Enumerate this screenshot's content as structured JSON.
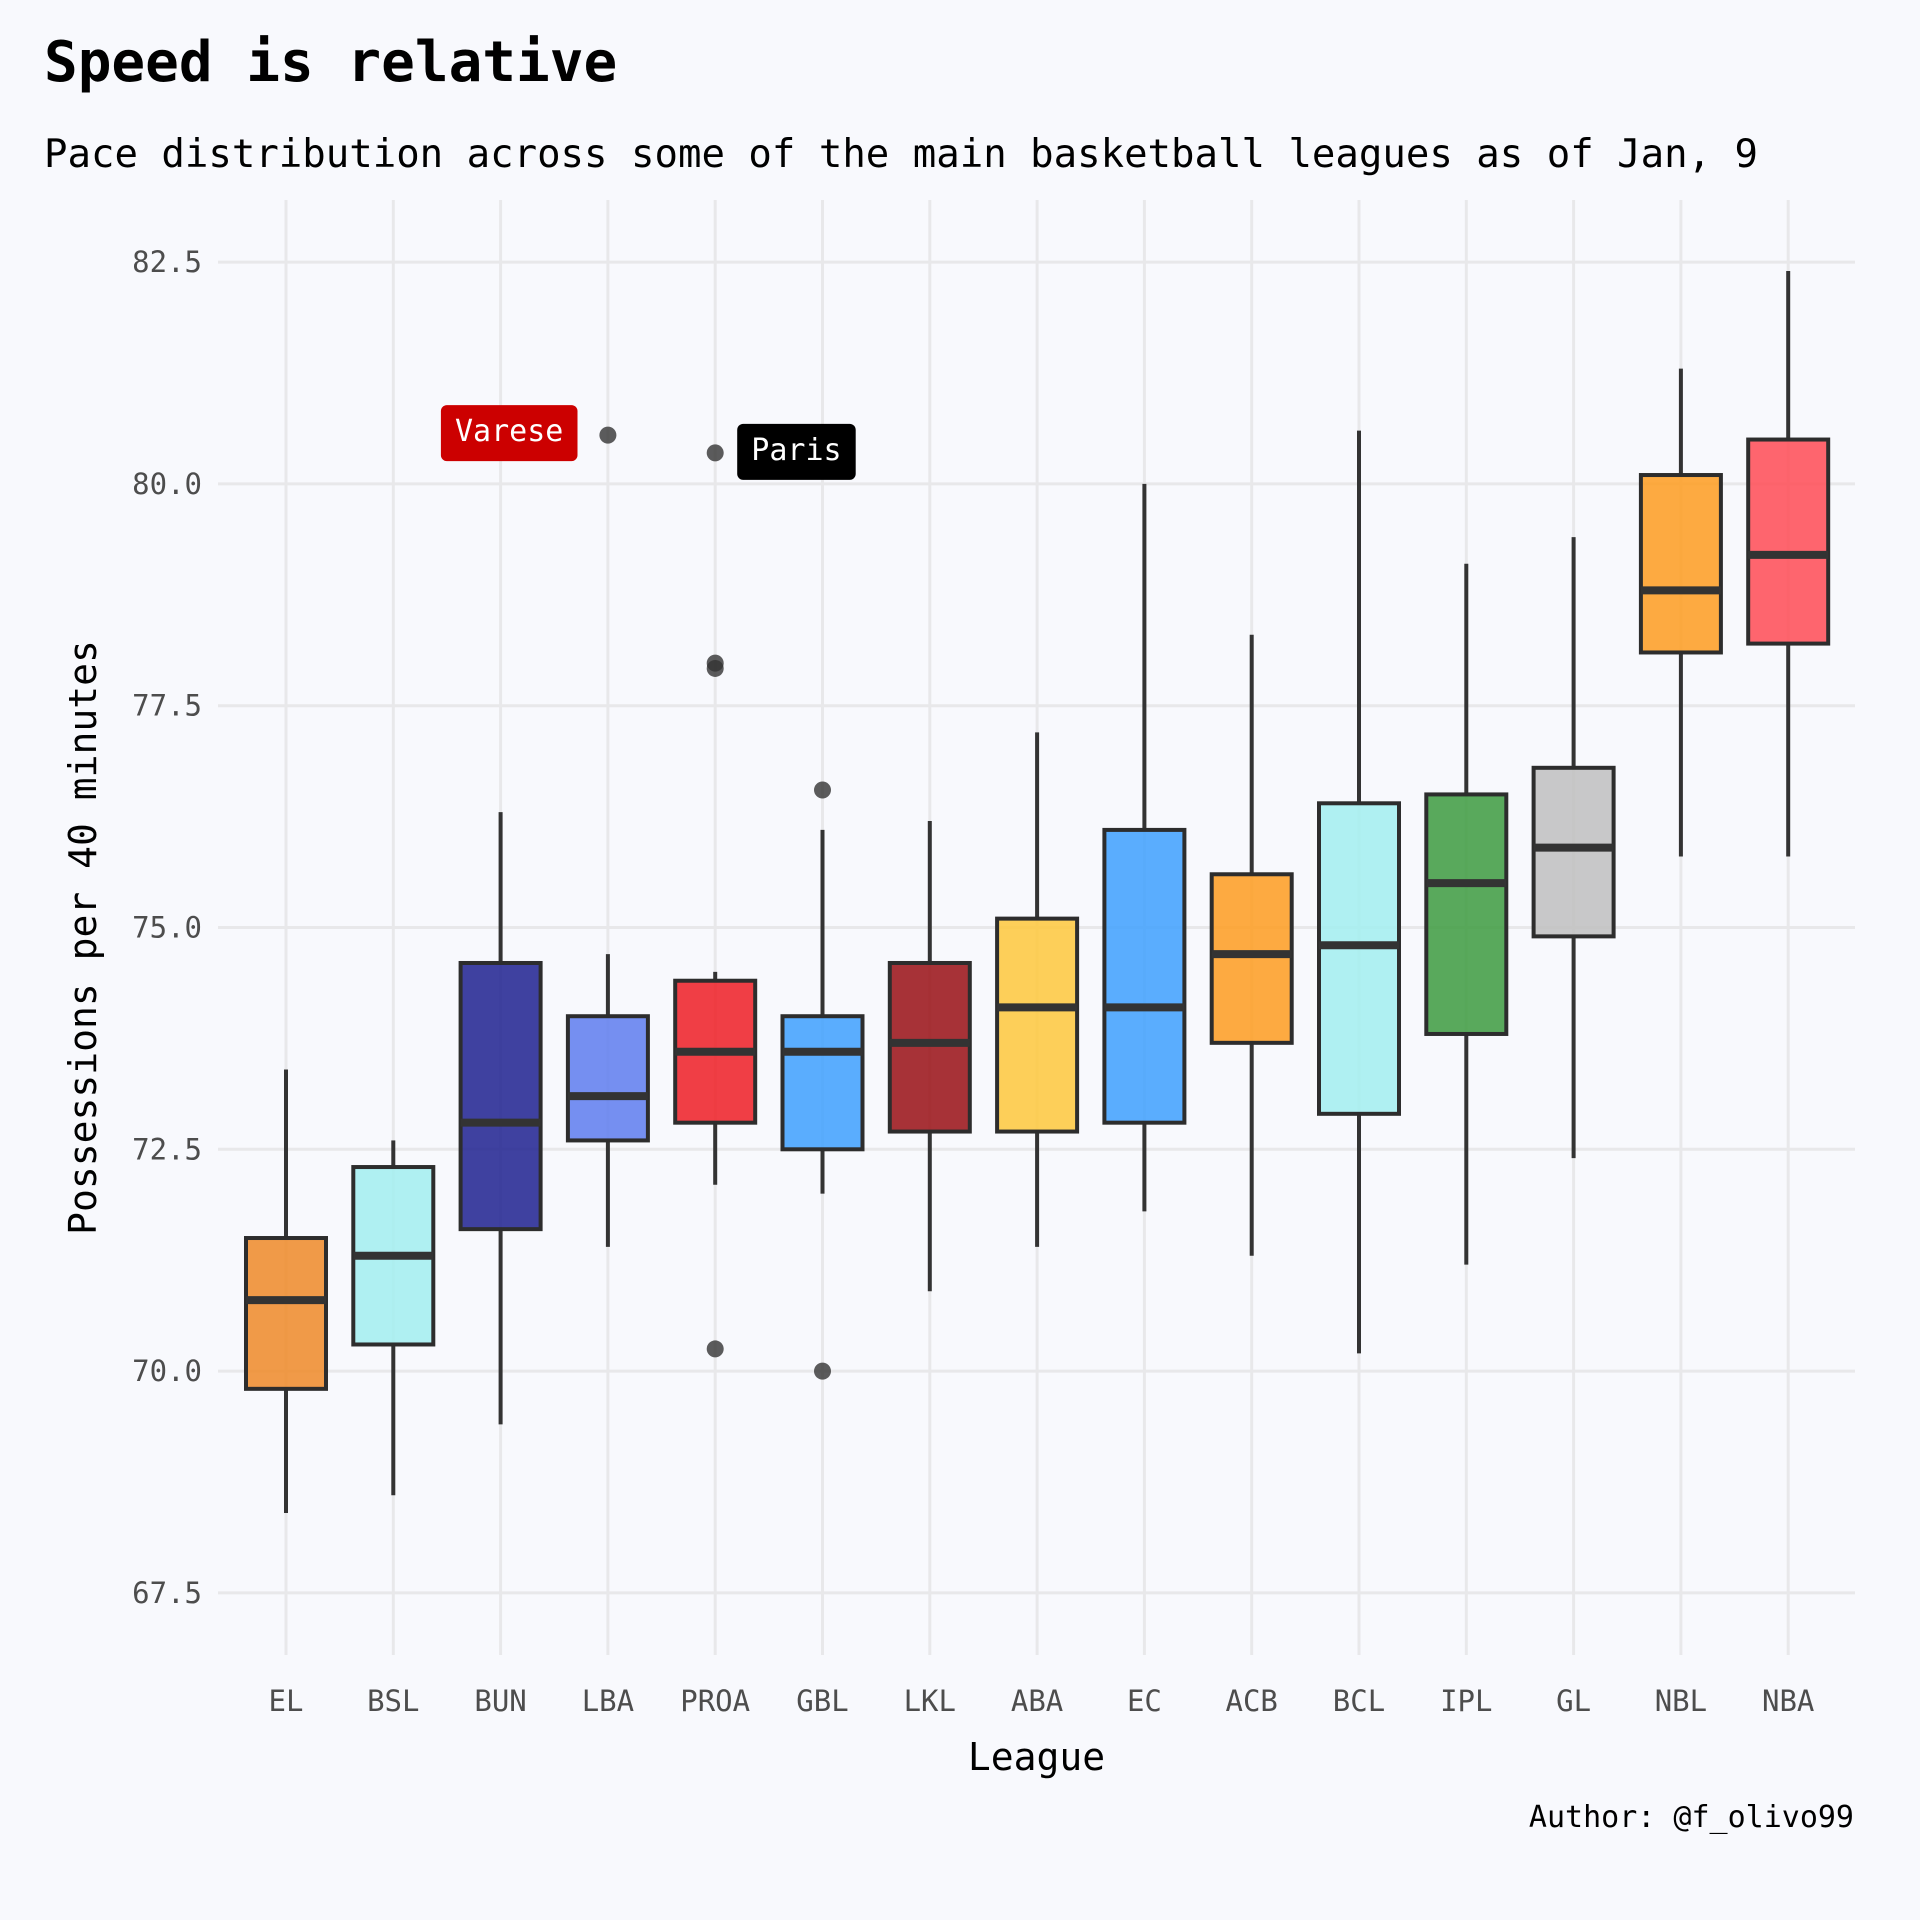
{
  "chart_data": {
    "type": "boxplot",
    "title": "Speed is relative",
    "subtitle": "Pace distribution across some of the main basketball leagues as of Jan, 9",
    "xlabel": "League",
    "ylabel": "Possessions per 40 minutes",
    "caption": "Author: @f_olivo99",
    "ylim": [
      66.8,
      83.2
    ],
    "yticks": [
      67.5,
      70.0,
      72.5,
      75.0,
      77.5,
      80.0,
      82.5
    ],
    "ytick_labels": [
      "67.5",
      "70.0",
      "72.5",
      "75.0",
      "77.5",
      "80.0",
      "82.5"
    ],
    "grid": true,
    "categories": [
      "EL",
      "BSL",
      "BUN",
      "LBA",
      "PROA",
      "GBL",
      "LKL",
      "ABA",
      "EC",
      "ACB",
      "BCL",
      "IPL",
      "GL",
      "NBL",
      "NBA"
    ],
    "boxes": [
      {
        "league": "EL",
        "color": "#ee8a28",
        "lower_whisker": 68.4,
        "q1": 69.8,
        "median": 70.8,
        "q3": 71.5,
        "upper_whisker": 73.4,
        "outliers": []
      },
      {
        "league": "BSL",
        "color": "#a2eef0",
        "lower_whisker": 68.6,
        "q1": 70.3,
        "median": 71.3,
        "q3": 72.3,
        "upper_whisker": 72.6,
        "outliers": []
      },
      {
        "league": "BUN",
        "color": "#1f218f",
        "lower_whisker": 69.4,
        "q1": 71.6,
        "median": 72.8,
        "q3": 74.6,
        "upper_whisker": 76.3,
        "outliers": []
      },
      {
        "league": "LBA",
        "color": "#5e7def",
        "lower_whisker": 71.4,
        "q1": 72.6,
        "median": 73.1,
        "q3": 74.0,
        "upper_whisker": 74.7,
        "outliers": [
          80.55
        ]
      },
      {
        "league": "PROA",
        "color": "#ee1d24",
        "lower_whisker": 72.1,
        "q1": 72.8,
        "median": 73.6,
        "q3": 74.4,
        "upper_whisker": 74.5,
        "outliers": [
          80.35,
          77.98,
          77.92,
          70.25
        ]
      },
      {
        "league": "GBL",
        "color": "#3ea0fe",
        "lower_whisker": 72.0,
        "q1": 72.5,
        "median": 73.6,
        "q3": 74.0,
        "upper_whisker": 76.1,
        "outliers": [
          76.55,
          70.0
        ]
      },
      {
        "league": "LKL",
        "color": "#990f14",
        "lower_whisker": 70.9,
        "q1": 72.7,
        "median": 73.7,
        "q3": 74.6,
        "upper_whisker": 76.2,
        "outliers": []
      },
      {
        "league": "ABA",
        "color": "#fec83c",
        "lower_whisker": 71.4,
        "q1": 72.7,
        "median": 74.1,
        "q3": 75.1,
        "upper_whisker": 77.2,
        "outliers": []
      },
      {
        "league": "EC",
        "color": "#3ea0fe",
        "lower_whisker": 71.8,
        "q1": 72.8,
        "median": 74.1,
        "q3": 76.1,
        "upper_whisker": 80.0,
        "outliers": []
      },
      {
        "league": "ACB",
        "color": "#fe9c20",
        "lower_whisker": 71.3,
        "q1": 73.7,
        "median": 74.7,
        "q3": 75.6,
        "upper_whisker": 78.3,
        "outliers": []
      },
      {
        "league": "BCL",
        "color": "#a2eef0",
        "lower_whisker": 70.2,
        "q1": 72.9,
        "median": 74.8,
        "q3": 76.4,
        "upper_whisker": 80.6,
        "outliers": []
      },
      {
        "league": "IPL",
        "color": "#3d9b40",
        "lower_whisker": 71.2,
        "q1": 73.8,
        "median": 75.5,
        "q3": 76.5,
        "upper_whisker": 79.1,
        "outliers": []
      },
      {
        "league": "GL",
        "color": "#bfbfbf",
        "lower_whisker": 72.4,
        "q1": 74.9,
        "median": 75.9,
        "q3": 76.8,
        "upper_whisker": 79.4,
        "outliers": []
      },
      {
        "league": "NBL",
        "color": "#fe9c20",
        "lower_whisker": 75.8,
        "q1": 78.1,
        "median": 78.8,
        "q3": 80.1,
        "upper_whisker": 81.3,
        "outliers": []
      },
      {
        "league": "NBA",
        "color": "#ff4b55",
        "lower_whisker": 75.8,
        "q1": 78.2,
        "median": 79.2,
        "q3": 80.5,
        "upper_whisker": 82.4,
        "outliers": []
      }
    ],
    "annotations": [
      {
        "label": "Varese",
        "league": "LBA",
        "value": 80.55,
        "side": "left",
        "color": "#cc0000"
      },
      {
        "label": "Paris",
        "league": "PROA",
        "value": 80.35,
        "side": "right",
        "color": "#000000"
      }
    ]
  }
}
